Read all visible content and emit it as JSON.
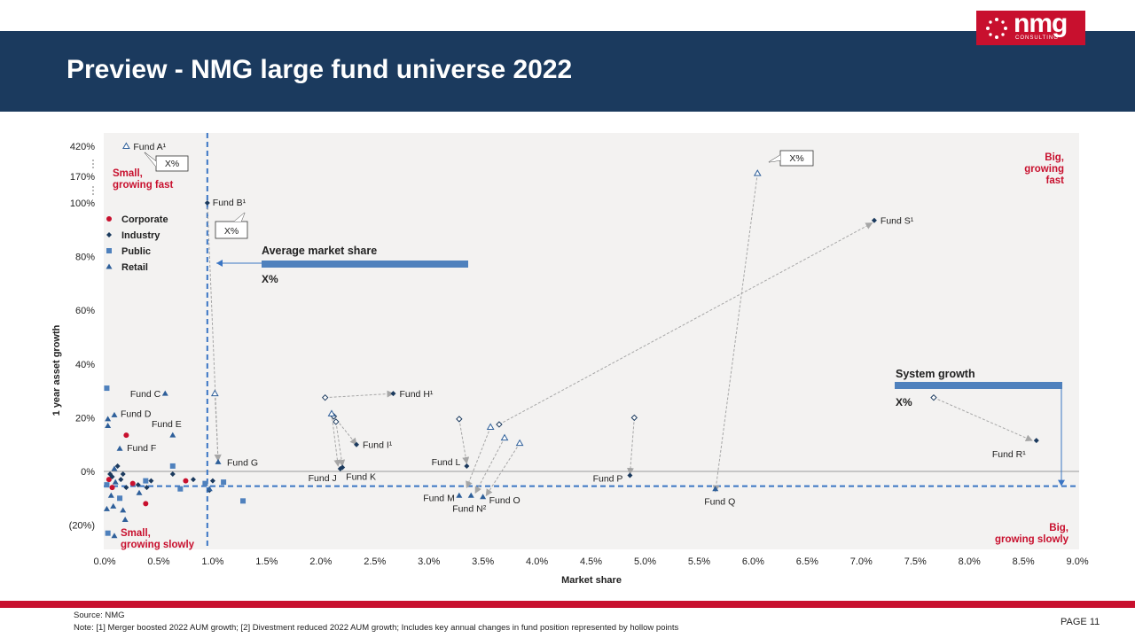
{
  "slide": {
    "title": "Preview - NMG large fund universe 2022",
    "logo_text": "nmg",
    "logo_subtext": "CONSULTING",
    "source": "Source: NMG",
    "note": "Note: [1] Merger boosted 2022 AUM growth; [2] Divestment reduced 2022 AUM growth; Includes key annual changes in fund position represented by hollow points",
    "page_label": "PAGE",
    "page_number": "11"
  },
  "colors": {
    "banner": "#1b3a5e",
    "accent_red": "#c8102e",
    "corporate": "#c8102e",
    "industry": "#1b3a5e",
    "public": "#4f81bd",
    "retail": "#2e5f9a",
    "ref_line": "#3a75c4",
    "arrow": "#a6a6a6"
  },
  "chart_data": {
    "type": "scatter",
    "xlabel": "Market share",
    "ylabel": "1 year asset growth",
    "xlim": [
      0,
      9
    ],
    "x_ticks": [
      "0.0%",
      "0.5%",
      "1.0%",
      "1.5%",
      "2.0%",
      "2.5%",
      "3.0%",
      "3.5%",
      "4.0%",
      "4.5%",
      "5.0%",
      "5.5%",
      "6.0%",
      "6.5%",
      "7.0%",
      "7.5%",
      "8.0%",
      "8.5%",
      "9.0%"
    ],
    "ylim": [
      -20,
      100
    ],
    "y_ticks": [
      {
        "label": "(20%)",
        "value": -20
      },
      {
        "label": "0%",
        "value": 0
      },
      {
        "label": "20%",
        "value": 20
      },
      {
        "label": "40%",
        "value": 40
      },
      {
        "label": "60%",
        "value": 60
      },
      {
        "label": "80%",
        "value": 80
      },
      {
        "label": "100%",
        "value": 100
      }
    ],
    "y_break_ticks": [
      {
        "label": "170%",
        "value": 170
      },
      {
        "label": "420%",
        "value": 420
      }
    ],
    "legend": [
      {
        "name": "Corporate",
        "marker": "circle"
      },
      {
        "name": "Industry",
        "marker": "diamond"
      },
      {
        "name": "Public",
        "marker": "square"
      },
      {
        "name": "Retail",
        "marker": "triangle"
      }
    ],
    "legend_position": "top-left",
    "reference_lines": {
      "average_market_share": {
        "x": 0.95,
        "label": "Average market share",
        "value_label": "X%"
      },
      "system_growth": {
        "y": -5.5,
        "label": "System growth",
        "value_label": "X%"
      }
    },
    "quadrant_labels": {
      "top_left": "Small, growing fast",
      "top_right": "Big, growing fast",
      "bottom_left": "Small, growing slowly",
      "bottom_right": "Big, growing slowly"
    },
    "callouts": [
      "X%",
      "X%",
      "X%"
    ],
    "named_funds": [
      {
        "name": "Fund A¹",
        "series": "Retail",
        "x": 0.2,
        "y": 420
      },
      {
        "name": "Fund B¹",
        "series": "Industry",
        "x": 0.95,
        "y": 100
      },
      {
        "name": "Fund C",
        "series": "Retail",
        "x": 0.56,
        "y": 29
      },
      {
        "name": "Fund D",
        "series": "Retail",
        "x": 0.09,
        "y": 21
      },
      {
        "name": "Fund E",
        "series": "Retail",
        "x": 0.63,
        "y": 13.5
      },
      {
        "name": "Fund F",
        "series": "Retail",
        "x": 0.14,
        "y": 8.5
      },
      {
        "name": "Fund G",
        "series": "Retail",
        "x": 1.05,
        "y": 3.5
      },
      {
        "name": "Fund H¹",
        "series": "Industry",
        "x": 2.67,
        "y": 29
      },
      {
        "name": "Fund I¹",
        "series": "Industry",
        "x": 2.33,
        "y": 10
      },
      {
        "name": "Fund J",
        "series": "Industry",
        "x": 2.18,
        "y": 1
      },
      {
        "name": "Fund K",
        "series": "Industry",
        "x": 2.2,
        "y": 1.5
      },
      {
        "name": "Fund L",
        "series": "Industry",
        "x": 3.35,
        "y": 2
      },
      {
        "name": "Fund M",
        "series": "Retail",
        "x": 3.28,
        "y": -9
      },
      {
        "name": "Fund N²",
        "series": "Retail",
        "x": 3.39,
        "y": -9
      },
      {
        "name": "Fund O",
        "series": "Retail",
        "x": 3.5,
        "y": -9.5
      },
      {
        "name": "Fund P",
        "series": "Industry",
        "x": 4.86,
        "y": -1.5
      },
      {
        "name": "Fund Q",
        "series": "Retail",
        "x": 5.65,
        "y": -6.5
      },
      {
        "name": "Fund R¹",
        "series": "Industry",
        "x": 8.62,
        "y": 11.5
      },
      {
        "name": "Fund S¹",
        "series": "Industry",
        "x": 7.12,
        "y": 93.5
      }
    ],
    "hollow_points": [
      {
        "series": "Retail",
        "x": 0.2,
        "y": 420
      },
      {
        "series": "Retail",
        "x": 1.02,
        "y": 29
      },
      {
        "series": "Industry",
        "x": 2.04,
        "y": 27.5
      },
      {
        "series": "Industry",
        "x": 2.12,
        "y": 20.5
      },
      {
        "series": "Retail",
        "x": 2.1,
        "y": 21.5
      },
      {
        "series": "Industry",
        "x": 2.14,
        "y": 18.5
      },
      {
        "series": "Industry",
        "x": 3.28,
        "y": 19.5
      },
      {
        "series": "Retail",
        "x": 3.57,
        "y": 16.5
      },
      {
        "series": "Industry",
        "x": 3.65,
        "y": 17.5
      },
      {
        "series": "Retail",
        "x": 3.7,
        "y": 12.5
      },
      {
        "series": "Retail",
        "x": 3.84,
        "y": 10.5
      },
      {
        "series": "Industry",
        "x": 4.9,
        "y": 20
      },
      {
        "series": "Retail",
        "x": 6.04,
        "y": 195
      },
      {
        "series": "Industry",
        "x": 7.67,
        "y": 27.5
      }
    ],
    "small_fund_cluster": [
      {
        "series": "Public",
        "x": 0.02,
        "y": 31
      },
      {
        "series": "Retail",
        "x": 0.03,
        "y": 19.5
      },
      {
        "series": "Retail",
        "x": 0.03,
        "y": 17
      },
      {
        "series": "Corporate",
        "x": 0.2,
        "y": 13.5
      },
      {
        "series": "Industry",
        "x": 0.05,
        "y": -1
      },
      {
        "series": "Retail",
        "x": 0.09,
        "y": 1
      },
      {
        "series": "Industry",
        "x": 0.12,
        "y": 2
      },
      {
        "series": "Corporate",
        "x": 0.04,
        "y": -3
      },
      {
        "series": "Industry",
        "x": 0.07,
        "y": -2
      },
      {
        "series": "Public",
        "x": 0.02,
        "y": -5
      },
      {
        "series": "Corporate",
        "x": 0.07,
        "y": -6
      },
      {
        "series": "Retail",
        "x": 0.1,
        "y": -4
      },
      {
        "series": "Industry",
        "x": 0.15,
        "y": -3
      },
      {
        "series": "Corporate",
        "x": 0.26,
        "y": -4.5
      },
      {
        "series": "Industry",
        "x": 0.2,
        "y": -6
      },
      {
        "series": "Public",
        "x": 0.14,
        "y": -10
      },
      {
        "series": "Retail",
        "x": 0.06,
        "y": -9
      },
      {
        "series": "Industry",
        "x": 0.31,
        "y": -5
      },
      {
        "series": "Public",
        "x": 0.38,
        "y": -3.5
      },
      {
        "series": "Industry",
        "x": 0.43,
        "y": -3.5
      },
      {
        "series": "Industry",
        "x": 0.39,
        "y": -6
      },
      {
        "series": "Retail",
        "x": 0.32,
        "y": -8
      },
      {
        "series": "Corporate",
        "x": 0.38,
        "y": -12
      },
      {
        "series": "Retail",
        "x": 0.02,
        "y": -14
      },
      {
        "series": "Retail",
        "x": 0.08,
        "y": -13
      },
      {
        "series": "Retail",
        "x": 0.17,
        "y": -14.5
      },
      {
        "series": "Retail",
        "x": 0.19,
        "y": -18
      },
      {
        "series": "Public",
        "x": 0.03,
        "y": -23
      },
      {
        "series": "Retail",
        "x": 0.09,
        "y": -24
      },
      {
        "series": "Industry",
        "x": 0.17,
        "y": -1
      },
      {
        "series": "Public",
        "x": 0.63,
        "y": 2
      },
      {
        "series": "Industry",
        "x": 0.63,
        "y": -1
      },
      {
        "series": "Corporate",
        "x": 0.75,
        "y": -3.5
      },
      {
        "series": "Industry",
        "x": 0.82,
        "y": -3
      },
      {
        "series": "Public",
        "x": 0.7,
        "y": -6.5
      },
      {
        "series": "Public",
        "x": 0.93,
        "y": -4.5
      },
      {
        "series": "Industry",
        "x": 0.97,
        "y": -7
      },
      {
        "series": "Industry",
        "x": 1.0,
        "y": -3.5
      },
      {
        "series": "Public",
        "x": 1.1,
        "y": -4
      },
      {
        "series": "Public",
        "x": 1.28,
        "y": -11
      },
      {
        "series": "Retail",
        "x": 0.97,
        "y": -6.5
      }
    ],
    "arrows": [
      {
        "from": [
          0.95,
          100
        ],
        "to": [
          1.05,
          4
        ]
      },
      {
        "from": [
          1.02,
          29
        ],
        "to": [
          1.05,
          4
        ]
      },
      {
        "from": [
          2.04,
          27.5
        ],
        "to": [
          2.67,
          29
        ]
      },
      {
        "from": [
          2.12,
          20.5
        ],
        "to": [
          2.33,
          10
        ]
      },
      {
        "from": [
          2.1,
          21.5
        ],
        "to": [
          2.16,
          2
        ]
      },
      {
        "from": [
          2.14,
          18.5
        ],
        "to": [
          2.2,
          2
        ]
      },
      {
        "from": [
          3.28,
          19.5
        ],
        "to": [
          3.35,
          3
        ]
      },
      {
        "from": [
          3.57,
          16.5
        ],
        "to": [
          3.35,
          -6
        ]
      },
      {
        "from": [
          3.65,
          17.5
        ],
        "to": [
          7.1,
          92.5
        ]
      },
      {
        "from": [
          3.7,
          12.5
        ],
        "to": [
          3.43,
          -8
        ]
      },
      {
        "from": [
          3.84,
          10.5
        ],
        "to": [
          3.53,
          -9
        ]
      },
      {
        "from": [
          4.9,
          20
        ],
        "to": [
          4.86,
          -1
        ]
      },
      {
        "from": [
          6.04,
          195
        ],
        "to": [
          5.65,
          -7.5
        ]
      },
      {
        "from": [
          7.67,
          27.5
        ],
        "to": [
          8.58,
          11.5
        ]
      }
    ]
  }
}
